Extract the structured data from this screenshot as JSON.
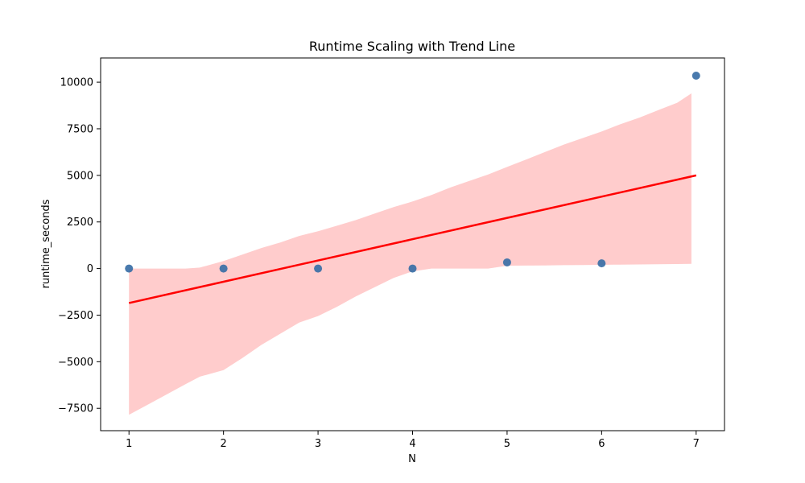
{
  "chart_data": {
    "type": "scatter",
    "title": "Runtime Scaling with Trend Line",
    "xlabel": "N",
    "ylabel": "runtime_seconds",
    "xlim": [
      0.7,
      7.3
    ],
    "ylim": [
      -8700,
      11300
    ],
    "x_ticks": [
      1,
      2,
      3,
      4,
      5,
      6,
      7
    ],
    "y_ticks": [
      -7500,
      -5000,
      -2500,
      0,
      2500,
      5000,
      7500,
      10000
    ],
    "x_tick_labels": [
      "1",
      "2",
      "3",
      "4",
      "5",
      "6",
      "7"
    ],
    "y_tick_labels": [
      "−7500",
      "−5000",
      "−2500",
      "0",
      "2500",
      "5000",
      "7500",
      "10000"
    ],
    "grid": false,
    "points": {
      "x": [
        1,
        2,
        3,
        4,
        5,
        6,
        7
      ],
      "y": [
        0,
        0,
        0,
        0,
        330,
        280,
        10350
      ],
      "color": "#3a6fa6"
    },
    "trend_line": {
      "x": [
        1,
        7
      ],
      "y": [
        -1850,
        5000
      ],
      "color": "#ff0000"
    },
    "confidence_band": {
      "color": "#ffcccc",
      "x": [
        1,
        1.2,
        1.4,
        1.6,
        1.75,
        2,
        2.2,
        2.4,
        2.6,
        2.8,
        3,
        3.2,
        3.4,
        3.6,
        3.8,
        4,
        4.2,
        4.4,
        4.6,
        4.8,
        5,
        5.2,
        5.4,
        5.6,
        5.8,
        6,
        6.2,
        6.4,
        6.6,
        6.8,
        6.95
      ],
      "upper": [
        0,
        0,
        0,
        0,
        50,
        400,
        750,
        1100,
        1400,
        1750,
        2000,
        2300,
        2600,
        2950,
        3300,
        3600,
        3950,
        4350,
        4700,
        5050,
        5450,
        5850,
        6250,
        6650,
        7000,
        7350,
        7750,
        8100,
        8500,
        8900,
        9400
      ],
      "lower": [
        -7850,
        -7300,
        -6750,
        -6200,
        -5800,
        -5450,
        -4800,
        -4100,
        -3500,
        -2900,
        -2550,
        -2050,
        -1500,
        -1000,
        -500,
        -150,
        0,
        0,
        0,
        0,
        150,
        160,
        170,
        180,
        190,
        200,
        210,
        220,
        230,
        240,
        250
      ]
    }
  }
}
